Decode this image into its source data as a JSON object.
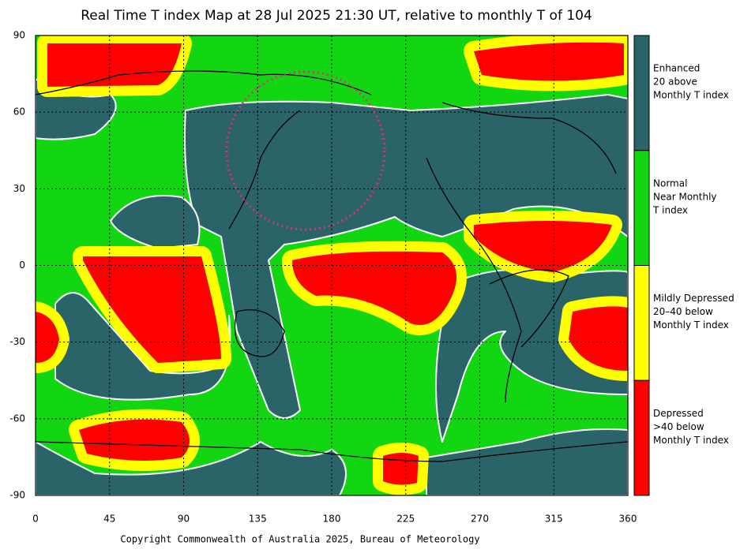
{
  "map": {
    "title": "Real Time T index Map at 28 Jul 2025 21:30 UT, relative to monthly T of 104",
    "xticks": [
      0,
      45,
      90,
      135,
      180,
      225,
      270,
      315,
      360
    ],
    "yticks": [
      90,
      60,
      30,
      0,
      -30,
      -60,
      -90
    ],
    "xlim": [
      0,
      360
    ],
    "ylim": [
      -90,
      90
    ],
    "legend": [
      {
        "color": "#2b6468",
        "lines": [
          "Enhanced",
          "20 above",
          "Monthly T index"
        ]
      },
      {
        "color": "#13d613",
        "lines": [
          "Normal",
          "Near Monthly",
          "T index"
        ]
      },
      {
        "color": "#ffff00",
        "lines": [
          "Mildly Depressed",
          "20–40 below",
          "Monthly T index"
        ]
      },
      {
        "color": "#ff0000",
        "lines": [
          "Depressed",
          ">40 below",
          "Monthly T index"
        ]
      }
    ],
    "copyright": "Copyright Commonwealth of Australia 2025, Bureau of Meteorology"
  }
}
